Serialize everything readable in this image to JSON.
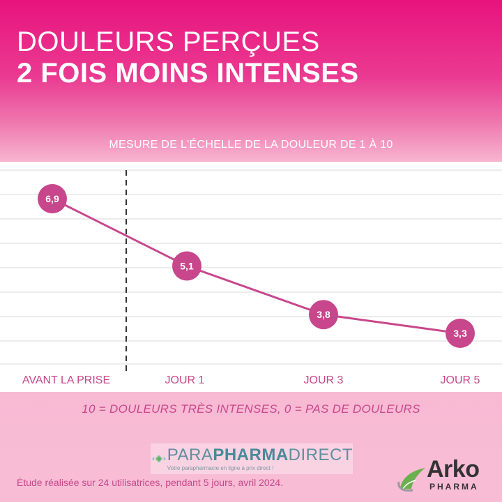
{
  "header": {
    "title_line1": "DOULEURS PERÇUES",
    "title_line2": "2 FOIS MOINS INTENSES"
  },
  "chart_data": {
    "type": "line",
    "title": "MESURE DE L'ÉCHELLE DE LA DOULEUR DE 1 À 10",
    "categories": [
      "AVANT LA PRISE",
      "JOUR 1",
      "JOUR 3",
      "JOUR 5"
    ],
    "values": [
      6.9,
      5.1,
      3.8,
      3.3
    ],
    "value_labels": [
      "6,9",
      "5,1",
      "3,8",
      "3,3"
    ],
    "ylim": [
      0,
      10
    ],
    "grid": true,
    "separator_after": "AVANT LA PRISE",
    "colors": {
      "line": "#c8468b",
      "marker": "#c8468b",
      "label": "#c8468b",
      "grid": "#d9d9d9"
    }
  },
  "scale_note": "10 = DOULEURS TRÈS INTENSES, 0 = PAS DE DOULEURS",
  "brand": {
    "name_part1": "PARA",
    "name_part2": "PHARMA",
    "name_part3": "DIRECT",
    "tagline": "Votre parapharmacie en ligne à prix direct !"
  },
  "footnote": "Étude réalisée sur 24 utilisatrices, pendant 5 jours, avril 2024.",
  "logo": {
    "name": "Arko",
    "sub": "PHARMA",
    "icon": "arko-leaf-icon"
  }
}
